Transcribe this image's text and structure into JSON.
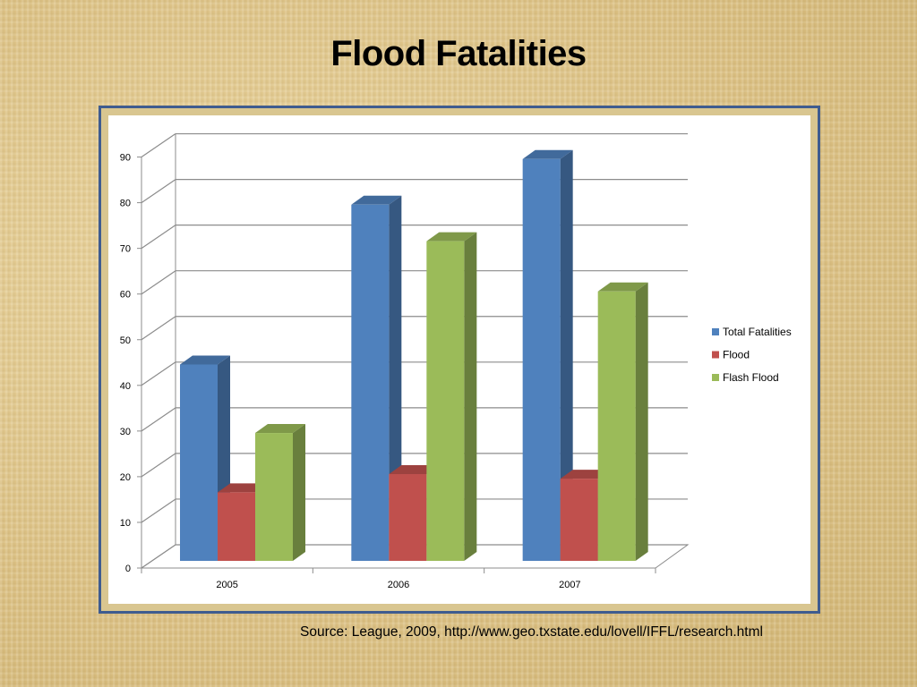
{
  "slide": {
    "title": "Flood Fatalities",
    "source": "Source: League, 2009, http://www.geo.txstate.edu/lovell/IFFL/research.html"
  },
  "chart_data": {
    "type": "bar",
    "style": "3d-clustered-column",
    "categories": [
      "2005",
      "2006",
      "2007"
    ],
    "series": [
      {
        "name": "Total Fatalities",
        "color": "#4f81bd",
        "values": [
          43,
          78,
          88
        ]
      },
      {
        "name": "Flood",
        "color": "#c0504d",
        "values": [
          15,
          19,
          18
        ]
      },
      {
        "name": "Flash Flood",
        "color": "#9bbb59",
        "values": [
          28,
          70,
          59
        ]
      }
    ],
    "yticks": [
      "0",
      "10",
      "20",
      "30",
      "40",
      "50",
      "60",
      "70",
      "80",
      "90"
    ],
    "ylim": [
      0,
      90
    ],
    "grid": true,
    "legend_position": "right"
  }
}
